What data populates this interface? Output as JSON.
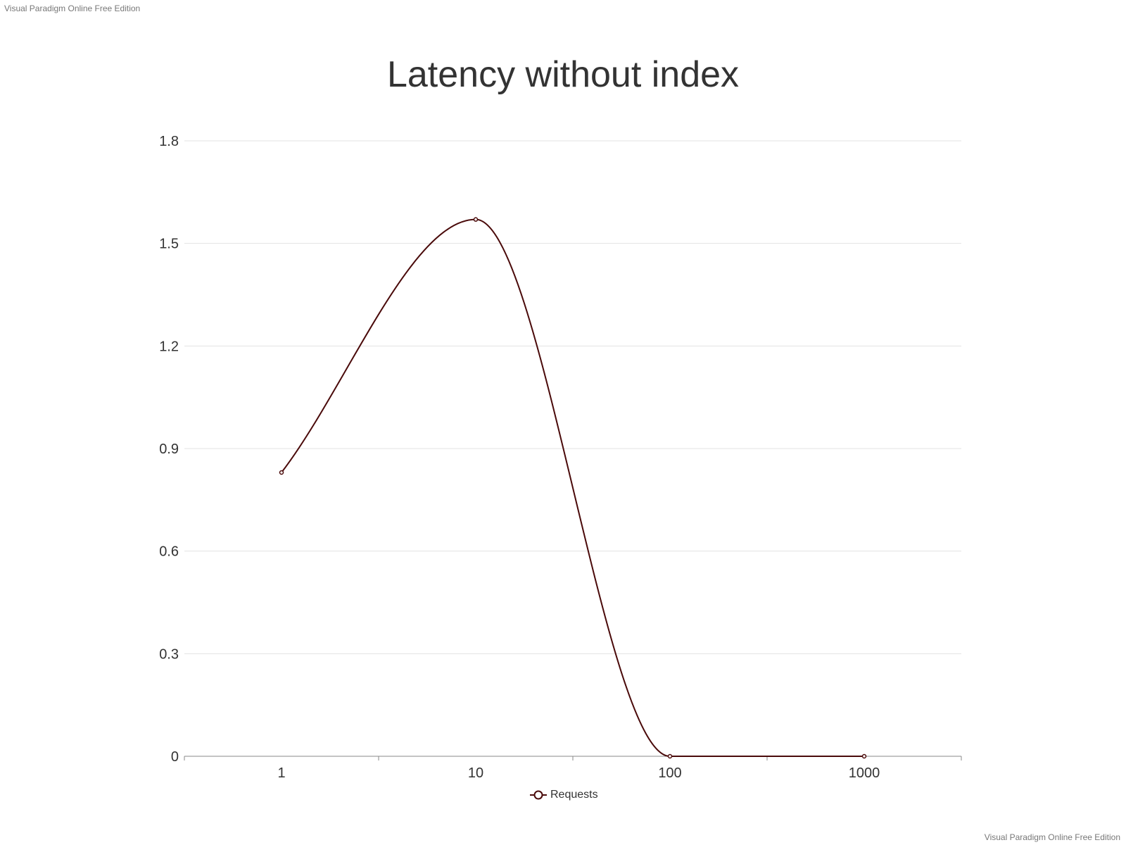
{
  "watermark": {
    "top": "Visual Paradigm Online Free Edition",
    "bottom": "Visual Paradigm Online Free Edition"
  },
  "colors": {
    "series": "#4a0a0a",
    "grid": "#e3e3e3",
    "axis": "#888888",
    "text": "#333333"
  },
  "chart_data": {
    "type": "line",
    "title": "Latency without index",
    "xlabel": "",
    "ylabel": "",
    "categories": [
      "1",
      "10",
      "100",
      "1000"
    ],
    "series": [
      {
        "name": "Requests",
        "values": [
          0.83,
          1.57,
          0,
          0
        ]
      }
    ],
    "ylim": [
      0,
      1.8
    ],
    "yticks": [
      "0",
      "0.3",
      "0.6",
      "0.9",
      "1.2",
      "1.5",
      "1.8"
    ],
    "smooth": true,
    "grid": true,
    "legend": "bottom-center"
  }
}
